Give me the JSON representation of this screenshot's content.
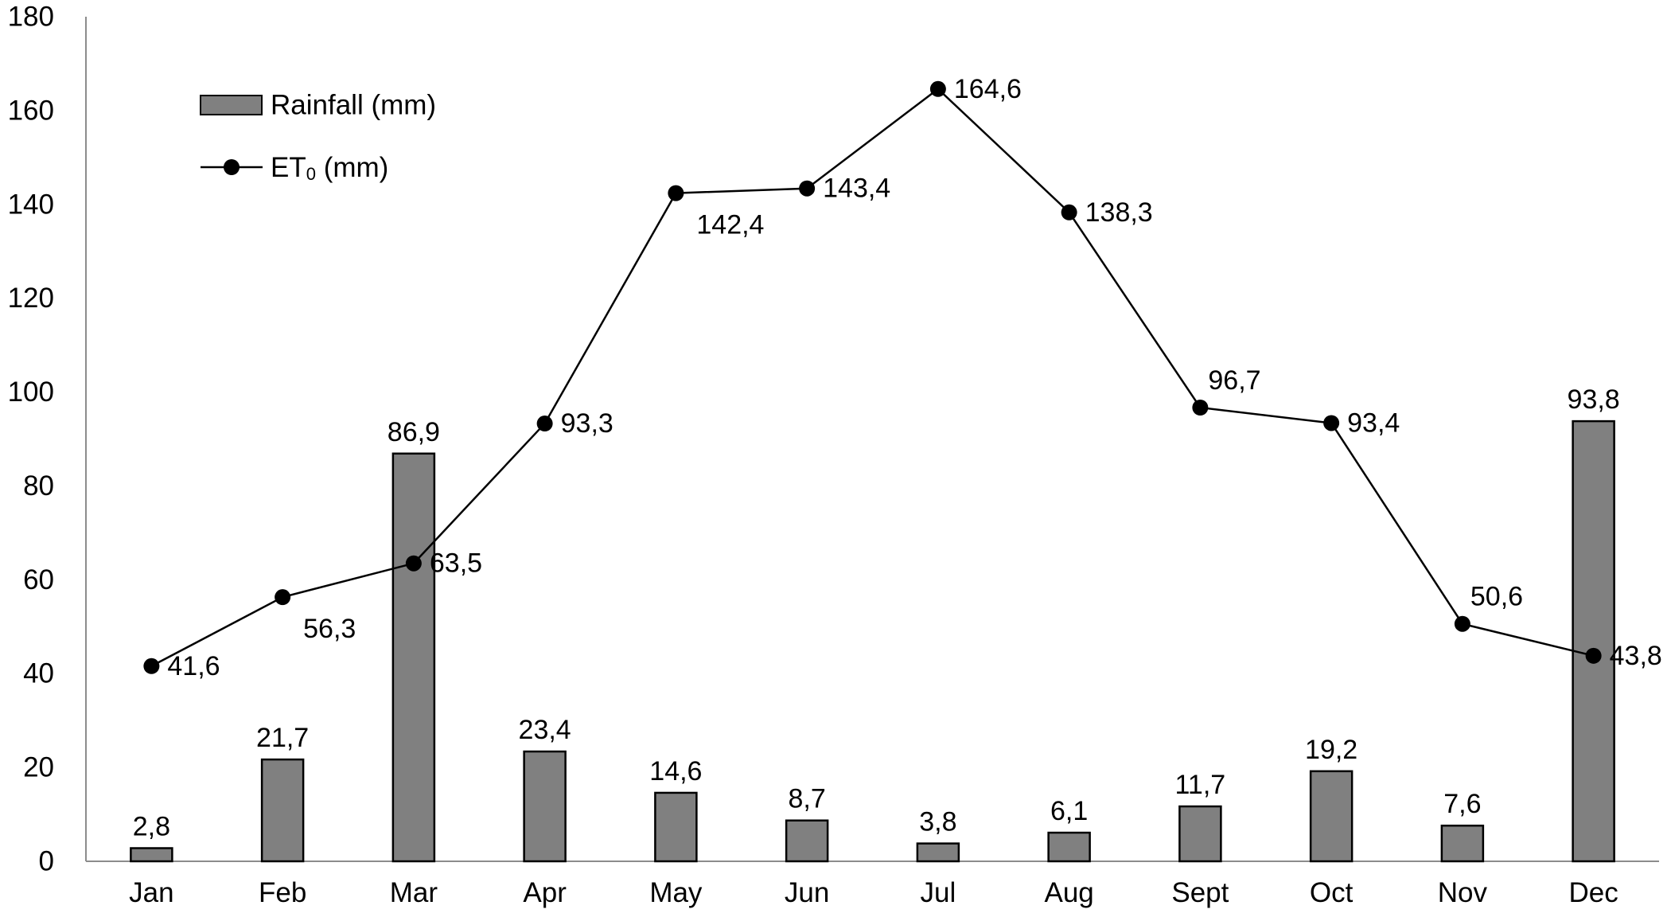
{
  "chart_data": {
    "type": "bar",
    "title": "",
    "xlabel": "",
    "ylabel": "",
    "categories": [
      "Jan",
      "Feb",
      "Mar",
      "Apr",
      "May",
      "Jun",
      "Jul",
      "Aug",
      "Sept",
      "Oct",
      "Nov",
      "Dec"
    ],
    "ylim": [
      0,
      180
    ],
    "yticks": [
      0,
      20,
      40,
      60,
      80,
      100,
      120,
      140,
      160,
      180
    ],
    "grid": false,
    "legend_position": "top-left",
    "series": [
      {
        "name": "Rainfall (mm)",
        "legend_label": {
          "main": "Rainfall (mm)"
        },
        "type": "bar",
        "color": "#808080",
        "values": [
          2.8,
          21.7,
          86.9,
          23.4,
          14.6,
          8.7,
          3.8,
          6.1,
          11.7,
          19.2,
          7.6,
          93.8
        ],
        "labels": [
          "2,8",
          "21,7",
          "86,9",
          "23,4",
          "14,6",
          "8,7",
          "3,8",
          "6,1",
          "11,7",
          "19,2",
          "7,6",
          "93,8"
        ]
      },
      {
        "name": "ET0 (mm)",
        "legend_label": {
          "main": "ET",
          "sub": "0",
          "rest": " (mm)"
        },
        "type": "line",
        "color": "#000000",
        "values": [
          41.6,
          56.3,
          63.5,
          93.3,
          142.4,
          143.4,
          164.6,
          138.3,
          96.7,
          93.4,
          50.6,
          43.8
        ],
        "labels": [
          "41,6",
          "56,3",
          "63,5",
          "93,3",
          "142,4",
          "143,4",
          "164,6",
          "138,3",
          "96,7",
          "93,4",
          "50,6",
          "43,8"
        ],
        "label_placement": [
          "right",
          "below-right",
          "right",
          "right",
          "below-right",
          "right",
          "right",
          "right",
          "above-right",
          "right",
          "above-right",
          "right"
        ]
      }
    ]
  }
}
